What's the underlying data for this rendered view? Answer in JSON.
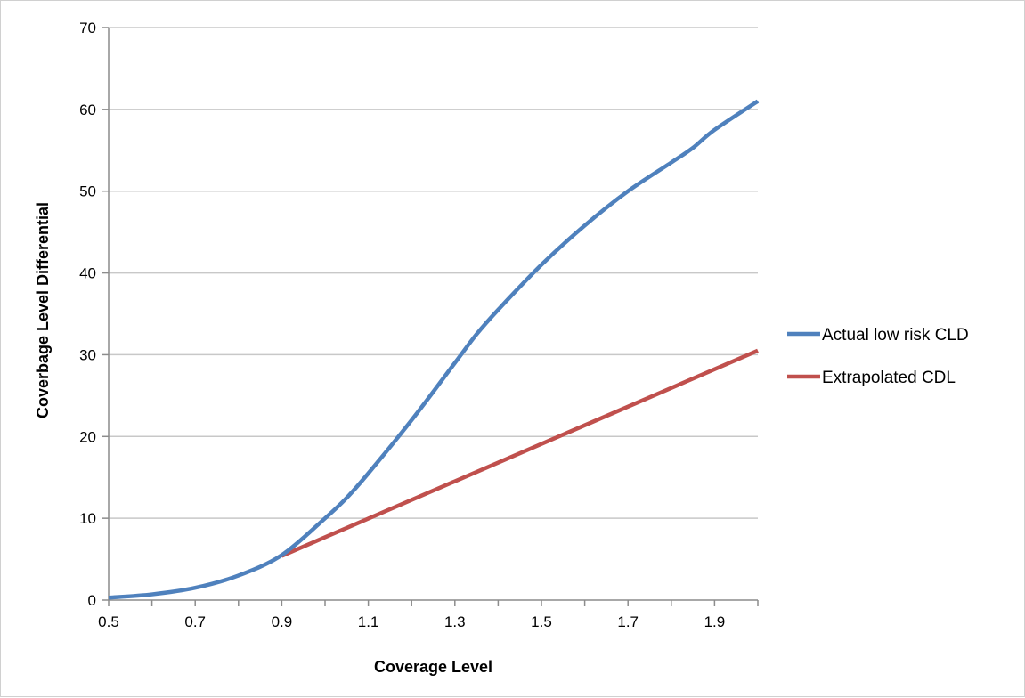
{
  "chart_data": {
    "type": "line",
    "title": "",
    "xlabel": "Coverage Level",
    "ylabel": "Coverbage Level Differential",
    "xlim": [
      0.5,
      2.0
    ],
    "ylim": [
      0,
      70
    ],
    "x_ticks": [
      "0.5",
      "0.7",
      "0.9",
      "1.1",
      "1.3",
      "1.5",
      "1.7",
      "1.9"
    ],
    "x_tick_values": [
      0.5,
      0.7,
      0.9,
      1.1,
      1.3,
      1.5,
      1.7,
      1.9
    ],
    "y_ticks": [
      "0",
      "10",
      "20",
      "30",
      "40",
      "50",
      "60",
      "70"
    ],
    "y_tick_values": [
      0,
      10,
      20,
      30,
      40,
      50,
      60,
      70
    ],
    "grid": "horizontal",
    "legend_position": "right",
    "series": [
      {
        "name": "Actual low risk CLD",
        "color": "#4f81bd",
        "x": [
          0.5,
          0.6,
          0.7,
          0.8,
          0.9,
          1.0,
          1.05,
          1.1,
          1.2,
          1.3,
          1.35,
          1.4,
          1.5,
          1.6,
          1.7,
          1.8,
          1.85,
          1.9,
          2.0
        ],
        "y": [
          0.3,
          0.7,
          1.5,
          3.0,
          5.5,
          10.0,
          12.5,
          15.5,
          22.0,
          29.0,
          32.5,
          35.5,
          41.0,
          45.8,
          50.0,
          53.5,
          55.3,
          57.5,
          61.0
        ]
      },
      {
        "name": "Extrapolated CDL",
        "color": "#c0504d",
        "x": [
          0.9,
          2.0
        ],
        "y": [
          5.4,
          30.5
        ]
      }
    ]
  }
}
